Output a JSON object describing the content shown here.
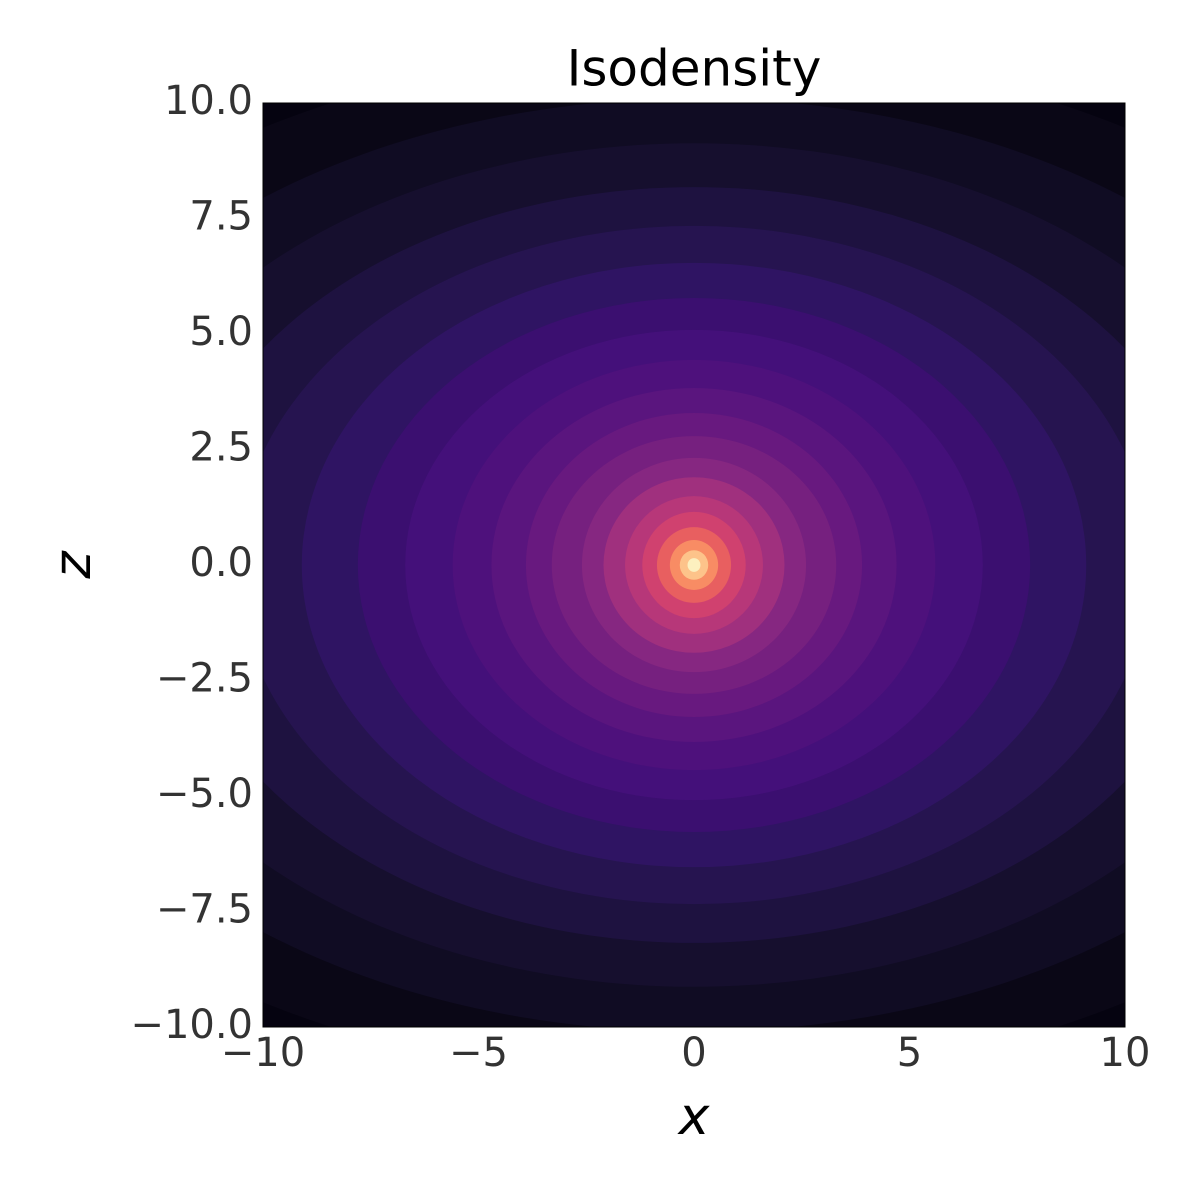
{
  "chart_data": {
    "type": "contour",
    "title": "Isodensity",
    "x_label": "x",
    "y_label": "z",
    "xlim": [
      -10,
      10
    ],
    "ylim": [
      -10,
      10
    ],
    "xticks": [
      {
        "value": -10,
        "label": "−10"
      },
      {
        "value": -5,
        "label": "−5"
      },
      0,
      5,
      10
    ],
    "yticks": [
      {
        "value": 10,
        "label": "10.0"
      },
      {
        "value": 7.5,
        "label": "7.5"
      },
      {
        "value": 5,
        "label": "5.0"
      },
      {
        "value": 2.5,
        "label": "2.5"
      },
      {
        "value": 0,
        "label": "0.0"
      },
      {
        "value": -2.5,
        "label": "−2.5"
      },
      {
        "value": -5,
        "label": "−5.0"
      },
      {
        "value": -7.5,
        "label": "−7.5"
      },
      {
        "value": -10,
        "label": "−10.0"
      }
    ],
    "background_color": "#050310",
    "contour_x_radii": [
      18.7,
      16.2,
      14.1,
      12.2,
      10.6,
      9.1,
      7.8,
      6.7,
      5.6,
      4.7,
      3.9,
      3.3,
      2.6,
      2.1,
      1.6,
      1.2,
      0.86,
      0.56,
      0.33,
      0.15
    ],
    "contour_z_radii": [
      11.2,
      10.1,
      9.13,
      8.18,
      7.34,
      6.54,
      5.78,
      5.09,
      4.44,
      3.83,
      3.29,
      2.79,
      2.32,
      1.9,
      1.49,
      1.15,
      0.82,
      0.54,
      0.32,
      0.15
    ],
    "colors": [
      "#0a0716",
      "#100c23",
      "#160f2e",
      "#1e1240",
      "#261450",
      "#2f1463",
      "#3b0f70",
      "#44107a",
      "#4e117c",
      "#5a157e",
      "#68197f",
      "#76207f",
      "#862781",
      "#a0307e",
      "#b73779",
      "#d0416f",
      "#e85f60",
      "#f88c64",
      "#fdc38a",
      "#fcf0bf"
    ]
  }
}
